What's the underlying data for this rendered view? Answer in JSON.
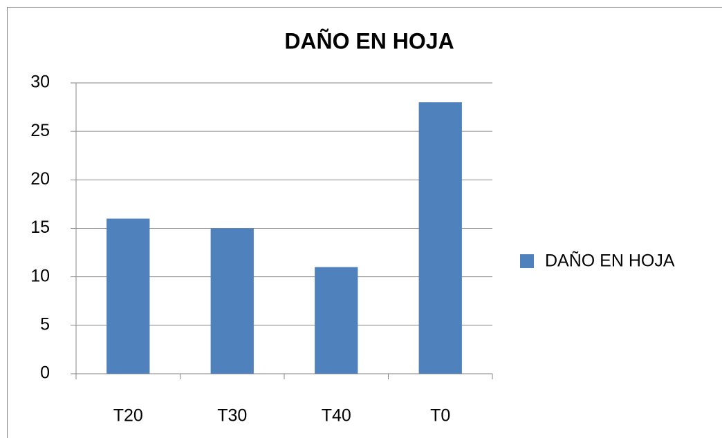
{
  "chart_data": {
    "type": "bar",
    "title": "DAÑO EN HOJA",
    "categories": [
      "T20",
      "T30",
      "T40",
      "T0"
    ],
    "series": [
      {
        "name": "DAÑO EN HOJA",
        "color": "#4f81bd",
        "values": [
          16,
          15,
          11,
          28
        ]
      }
    ],
    "ylim": [
      0,
      30
    ],
    "yticks": [
      0,
      5,
      10,
      15,
      20,
      25,
      30
    ],
    "grid": true,
    "legend": "right"
  }
}
